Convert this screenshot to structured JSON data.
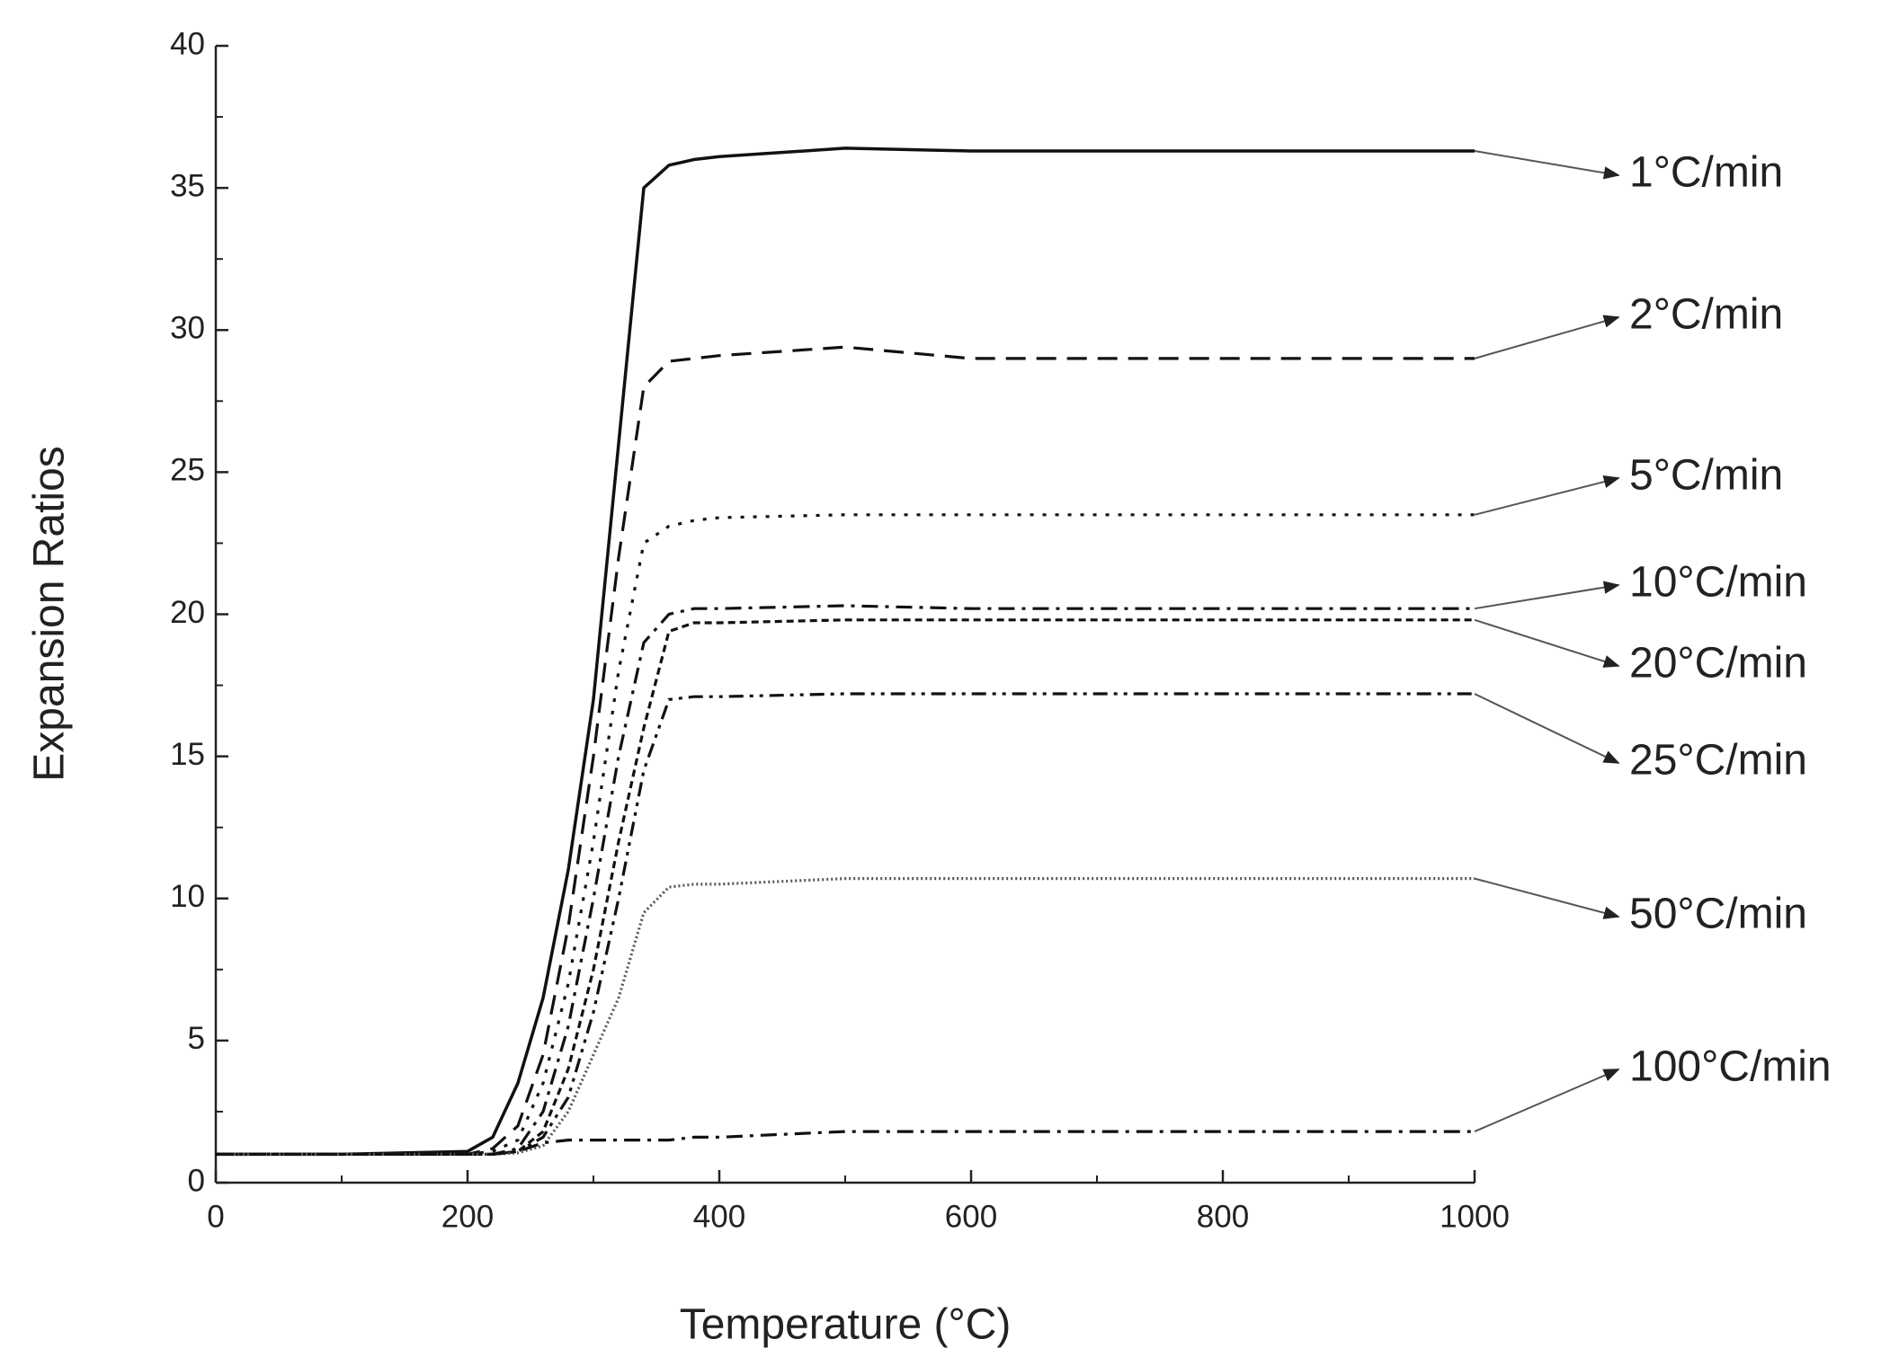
{
  "chart_data": {
    "type": "line",
    "x_label": "Temperature (°C)",
    "y_label": "Expansion Ratios",
    "x": [
      0,
      100,
      200,
      220,
      240,
      260,
      280,
      300,
      320,
      340,
      360,
      380,
      400,
      500,
      600,
      800,
      1000
    ],
    "xlim": [
      0,
      1000
    ],
    "xticks": [
      0,
      200,
      400,
      600,
      800,
      1000
    ],
    "ylim": [
      0,
      40
    ],
    "yticks": [
      0,
      5,
      10,
      15,
      20,
      25,
      30,
      35,
      40
    ],
    "series": [
      {
        "name": "1°C/min",
        "color": "#111111",
        "style": "solid",
        "values": [
          1,
          1,
          1.1,
          1.6,
          3.5,
          6.5,
          11,
          17,
          26,
          35,
          35.8,
          36,
          36.1,
          36.4,
          36.3,
          36.3,
          36.3
        ]
      },
      {
        "name": "2°C/min",
        "color": "#111111",
        "style": "dash",
        "values": [
          1,
          1,
          1,
          1.2,
          2,
          4.5,
          9,
          15,
          22,
          28,
          28.9,
          29,
          29.1,
          29.4,
          29,
          29,
          29
        ]
      },
      {
        "name": "5°C/min",
        "color": "#111111",
        "style": "dot",
        "values": [
          1,
          1,
          1,
          1.1,
          1.5,
          3.5,
          7,
          12,
          18,
          22.5,
          23.1,
          23.3,
          23.4,
          23.5,
          23.5,
          23.5,
          23.5
        ]
      },
      {
        "name": "10°C/min",
        "color": "#111111",
        "style": "dash-dot",
        "values": [
          1,
          1,
          1,
          1,
          1.2,
          2.5,
          5.5,
          10,
          15,
          19,
          20,
          20.2,
          20.2,
          20.3,
          20.2,
          20.2,
          20.2
        ]
      },
      {
        "name": "20°C/min",
        "color": "#111111",
        "style": "short-dash",
        "values": [
          1,
          1,
          1,
          1,
          1.1,
          1.8,
          4,
          7.5,
          12,
          16,
          19.4,
          19.7,
          19.7,
          19.8,
          19.8,
          19.8,
          19.8
        ]
      },
      {
        "name": "25°C/min",
        "color": "#111111",
        "style": "dash-dot-dot",
        "values": [
          1,
          1,
          1,
          1,
          1.1,
          1.6,
          3,
          6,
          10,
          14.5,
          17,
          17.1,
          17.1,
          17.2,
          17.2,
          17.2,
          17.2
        ]
      },
      {
        "name": "50°C/min",
        "color": "#555555",
        "style": "fine-dot",
        "values": [
          1,
          1,
          1,
          1,
          1.05,
          1.3,
          2.5,
          4.5,
          6.5,
          9.5,
          10.4,
          10.5,
          10.5,
          10.7,
          10.7,
          10.7,
          10.7
        ]
      },
      {
        "name": "100°C/min",
        "color": "#111111",
        "style": "dash-dot",
        "values": [
          1,
          1,
          1,
          1,
          1.1,
          1.4,
          1.5,
          1.5,
          1.5,
          1.5,
          1.5,
          1.6,
          1.6,
          1.8,
          1.8,
          1.8,
          1.8
        ]
      }
    ]
  }
}
